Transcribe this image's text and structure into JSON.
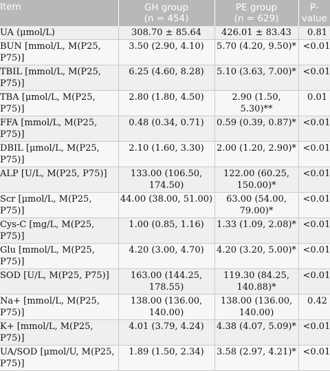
{
  "header": {
    "item": "Item",
    "gh_label": "GH group",
    "gh_n": "(n = 454)",
    "pe_label": "PE group",
    "pe_n": "(n = 629)",
    "p_label": "P-",
    "p_label2": "value"
  },
  "rows": [
    {
      "item": "UA (μmol/L)",
      "gh": "308.70 ± 85.64",
      "pe": "426.01 ± 83.43",
      "p": "0.81"
    },
    {
      "item": "BUN [mmol/L, M(P25, P75)]",
      "gh": "3.50 (2.90, 4.10)",
      "pe": "5.70 (4.20, 9.50)*",
      "p": "<0.01"
    },
    {
      "item": "TBIL [mmol/L, M(P25, P75)]",
      "gh": "6.25 (4.60, 8.28)",
      "pe": "5.10 (3.63, 7.00)*",
      "p": "<0.01"
    },
    {
      "item": "TBA [μmol/L, M(P25, P75)]",
      "gh": "2.80 (1.80, 4.50)",
      "pe": "2.90 (1.50, 5.30)**",
      "p": "0.01"
    },
    {
      "item": "FFA [mmol/L, M(P25, P75)]",
      "gh": "0.48 (0.34, 0.71)",
      "pe": "0.59 (0.39, 0.87)*",
      "p": "<0.01"
    },
    {
      "item": "DBIL [μmol/L, M(P25, P75)]",
      "gh": "2.10 (1.60, 3.30)",
      "pe": "2.00 (1.20, 2.90)*",
      "p": "<0.01"
    },
    {
      "item": "ALP [U/L, M(P25, P75)]",
      "gh": "133.00 (106.50, 174.50)",
      "pe": "122.00 (60.25, 150.00)*",
      "p": "<0.01"
    },
    {
      "item": "Scr [μmol/L, M(P25, P75)]",
      "gh": "44.00 (38.00, 51.00)",
      "pe": "63.00 (54.00, 79.00)*",
      "p": "<0.01"
    },
    {
      "item": "Cys-C [mg/L, M(P25, P75)]",
      "gh": "1.00 (0.85, 1.16)",
      "pe": "1.33 (1.09, 2.08)*",
      "p": "<0.01"
    },
    {
      "item": "Glu [mmol/L, M(P25, P75)]",
      "gh": "4.20 (3.00, 4.70)",
      "pe": "4.20 (3.20, 5.00)*",
      "p": "<0.01"
    },
    {
      "item": "SOD [U/L, M(P25, P75)]",
      "gh": "163.00 (144.25, 178.55)",
      "pe": "119.30 (84.25, 140.88)*",
      "p": "<0.01"
    },
    {
      "item": "Na+ [mmol/L, M(P25, P75)]",
      "gh": "138.00 (136.00, 140.00)",
      "pe": "138.00 (136.00, 140.00)",
      "p": "0.42"
    },
    {
      "item": "K+ [mmol/L, M(P25, P75)]",
      "gh": "4.01 (3.79, 4.24)",
      "pe": "4.38 (4.07, 5.09)*",
      "p": "<0.01"
    },
    {
      "item": "UA/SOD [μmol/U, M(P25, P75)]",
      "gh": "1.89 (1.50, 2.34)",
      "pe": "3.58 (2.97, 4.21)*",
      "p": "<0.01"
    }
  ]
}
